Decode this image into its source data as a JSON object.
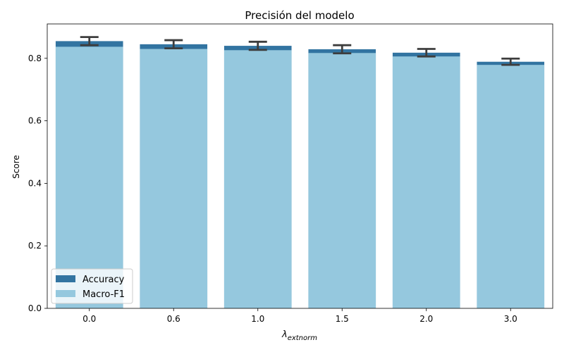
{
  "chart_data": {
    "type": "bar",
    "title": "Precisión del modelo",
    "xlabel": "λextnorm",
    "ylabel": "Score",
    "categories": [
      "0.0",
      "0.6",
      "1.0",
      "1.5",
      "2.0",
      "3.0"
    ],
    "ylim": [
      0,
      0.91
    ],
    "yticks": [
      "0.0",
      "0.2",
      "0.4",
      "0.6",
      "0.8"
    ],
    "series": [
      {
        "name": "Accuracy",
        "color": "#3274a1",
        "values": [
          0.855,
          0.845,
          0.84,
          0.829,
          0.818,
          0.789
        ],
        "error": [
          0.013,
          0.013,
          0.013,
          0.013,
          0.012,
          0.01
        ]
      },
      {
        "name": "Macro-F1",
        "color": "#95c8de",
        "values": [
          0.837,
          0.83,
          0.826,
          0.817,
          0.806,
          0.779
        ]
      }
    ],
    "legend": "lower-left",
    "grid": false
  }
}
